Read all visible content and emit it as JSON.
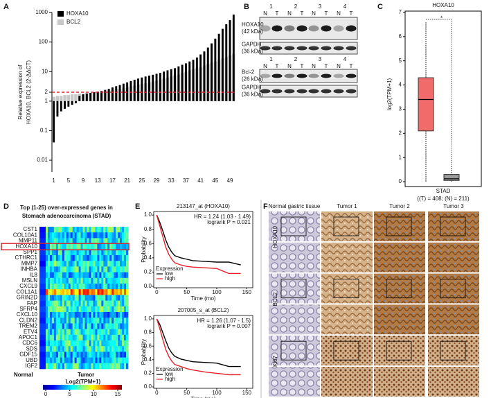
{
  "panels": [
    "A",
    "B",
    "C",
    "D",
    "E",
    "F"
  ],
  "chart_data": [
    {
      "type": "bar",
      "log_y": true,
      "ylabel_lines": [
        "Relative expression of",
        "HOXA10, BCL2 (2-ΔΔCT)"
      ],
      "categories": [
        1,
        null,
        null,
        null,
        5,
        null,
        null,
        null,
        9,
        null,
        null,
        null,
        13,
        null,
        null,
        null,
        17,
        null,
        null,
        null,
        21,
        null,
        null,
        null,
        25,
        null,
        null,
        null,
        29,
        null,
        null,
        null,
        33,
        null,
        null,
        null,
        37,
        null,
        null,
        null,
        41,
        null,
        null,
        null,
        45,
        null,
        null,
        null,
        49,
        null
      ],
      "series": [
        {
          "name": "HOXA10",
          "color": "#000000",
          "values": [
            0.04,
            0.3,
            0.45,
            0.55,
            0.65,
            0.75,
            0.85,
            1.5,
            1.7,
            1.8,
            1.9,
            2,
            2.1,
            2.2,
            2.4,
            2.6,
            2.9,
            3.2,
            3.5,
            3.9,
            4.3,
            4.8,
            5.3,
            5.8,
            6.3,
            6.8,
            7.3,
            7.8,
            8.4,
            9,
            10,
            11,
            12,
            13,
            15,
            17,
            19,
            22,
            25,
            30,
            38,
            48,
            65,
            90,
            130,
            190,
            280,
            400,
            550,
            850
          ]
        },
        {
          "name": "BCL2",
          "color": "#c8c8c8",
          "values": [
            1.4,
            1.5,
            1.5,
            1.6,
            1.6,
            1.7,
            1.7,
            1.8,
            1.8,
            1.9,
            1.9,
            2,
            2,
            2.1,
            2.2,
            2.3,
            2.4,
            2.5,
            2.6,
            2.8,
            3,
            3.2,
            3.4,
            3.6,
            3.8,
            4,
            4.3,
            4.6,
            5,
            5.4,
            5.8,
            6.2,
            6.8,
            7.4,
            8,
            9,
            10,
            11,
            12,
            13,
            14,
            16,
            18,
            20,
            22,
            25,
            28,
            31,
            35,
            40
          ]
        }
      ],
      "ylim": [
        0.004,
        1000
      ],
      "yticks": [
        1000,
        100,
        10,
        2,
        1,
        0.1,
        0.01
      ],
      "baseline": 1,
      "ref_line": {
        "value": 2,
        "color": "#e8202a"
      },
      "legend": "upper left"
    },
    {
      "type": "box",
      "title": "HOXA10",
      "ylabel": "log2(TPM+1)",
      "xlabel": "STAD",
      "note": "((T) = 408; (N) = 211)",
      "annotation": "*",
      "annotation_color": "#e8202a",
      "ylim": [
        -0.2,
        7.4
      ],
      "yticks": [
        0,
        1,
        2,
        3,
        4,
        5,
        6,
        7
      ],
      "boxes": [
        {
          "color": "#f26b6b",
          "whisker_low": 0,
          "q1": 2.1,
          "median": 3.4,
          "q3": 4.3,
          "whisker_high": 6.6
        },
        {
          "color": "#9a9a9a",
          "whisker_low": 0,
          "q1": 0.05,
          "median": 0.12,
          "q3": 0.3,
          "whisker_high": 0.7
        }
      ]
    },
    {
      "type": "line",
      "title": "213147_at (HOXA10)",
      "annotations": [
        "HR = 1.24 (1.03 - 1.49)",
        "logrank P = 0.021"
      ],
      "xlabel": "Time (mo)",
      "ylabel": "Probability",
      "legend_title": "Expression",
      "x": [
        0,
        5,
        10,
        15,
        20,
        25,
        30,
        40,
        50,
        60,
        80,
        100,
        120,
        140
      ],
      "series": [
        {
          "name": "low",
          "color": "#000000",
          "values": [
            1,
            0.9,
            0.78,
            0.65,
            0.55,
            0.48,
            0.43,
            0.4,
            0.38,
            0.36,
            0.35,
            0.34,
            0.34,
            0.3
          ]
        },
        {
          "name": "high",
          "color": "#e8202a",
          "values": [
            1,
            0.85,
            0.7,
            0.55,
            0.45,
            0.38,
            0.33,
            0.3,
            0.28,
            0.27,
            0.26,
            0.25,
            0.18,
            0.18
          ]
        }
      ],
      "xlim": [
        -5,
        160
      ],
      "xticks": [
        0,
        50,
        100,
        150
      ],
      "ylim": [
        -0.02,
        1.05
      ],
      "yticks": [
        {
          "value": 0,
          "label": "0.0"
        },
        0.2,
        0.4,
        0.6,
        0.8,
        {
          "value": 1,
          "label": "1.0"
        }
      ]
    },
    {
      "type": "line",
      "title": "207005_s_at (BCL2)",
      "annotations": [
        "HR = 1.26 (1.07 - 1.5)",
        "logrank P = 0.007"
      ],
      "xlabel": "Time (mo)",
      "ylabel": "Probability",
      "legend_title": "Expression",
      "x": [
        0,
        5,
        10,
        15,
        20,
        25,
        30,
        40,
        50,
        60,
        80,
        100,
        120,
        140
      ],
      "series": [
        {
          "name": "low",
          "color": "#000000",
          "values": [
            1,
            0.92,
            0.8,
            0.68,
            0.57,
            0.5,
            0.45,
            0.41,
            0.39,
            0.37,
            0.36,
            0.35,
            0.3,
            0.3
          ]
        },
        {
          "name": "high",
          "color": "#e8202a",
          "values": [
            1,
            0.86,
            0.7,
            0.55,
            0.45,
            0.38,
            0.33,
            0.3,
            0.27,
            0.25,
            0.22,
            0.2,
            0.18,
            0.18
          ]
        }
      ],
      "xlim": [
        -5,
        160
      ],
      "xticks": [
        0,
        50,
        100,
        150
      ],
      "ylim": [
        -0.02,
        1.05
      ],
      "yticks": [
        {
          "value": 0,
          "label": "0.0"
        },
        0.2,
        0.4,
        0.6,
        0.8,
        {
          "value": 1,
          "label": "1.0"
        }
      ]
    }
  ],
  "blots": [
    {
      "lanes": [
        "1",
        "2",
        "3",
        "4"
      ],
      "sublanes": [
        "N",
        "T",
        "N",
        "T",
        "N",
        "T",
        "N",
        "T"
      ],
      "rows": [
        {
          "lines": [
            "HOXA10",
            "(42 kDa)"
          ]
        },
        {
          "lines": [
            "GAPDH",
            "(36 kDa)"
          ]
        }
      ]
    },
    {
      "lanes": [
        "1",
        "2",
        "3",
        "4"
      ],
      "sublanes": [
        "N",
        "T",
        "N",
        "T",
        "N",
        "T",
        "N",
        "T"
      ],
      "rows": [
        {
          "lines": [
            "Bcl-2",
            "(26 kDa)"
          ]
        },
        {
          "lines": [
            "GAPDH",
            "(36 kDa)"
          ]
        }
      ]
    }
  ],
  "heatmap": {
    "title_lines": [
      "Top (1-25) over-expressed genes in",
      "Stomach adenocarcinoma (STAD)"
    ],
    "genes": [
      "CST1",
      "COL10A1",
      "MMP11",
      "HOXA10",
      "SPP1",
      "CTHRC1",
      "MMP7",
      "INHBA",
      "IL8",
      "MSLN",
      "CXCL9",
      "COL1A1",
      "GRIN2D",
      "FAP",
      "SFRP4",
      "CXCL10",
      "CLDN2",
      "TREM2",
      "ETV4",
      "APOC1",
      "CDC6",
      "SDS",
      "GDF15",
      "UBD",
      "IGF2"
    ],
    "highlight": "HOXA10",
    "groups": [
      "Normal",
      "Tumor"
    ],
    "group_color": "#8b1a1a",
    "colorbar_title": "Log2(TPM+1)",
    "colorbar_range": [
      0,
      15
    ],
    "colorbar_ticks": [
      0,
      5,
      10,
      15
    ]
  },
  "ihc": {
    "columns": [
      "Normal gastric tissue",
      "Tumor 1",
      "Tumor 2",
      "Tumor 3"
    ],
    "rows": [
      "HOXA10",
      "BCL2",
      "Ki67"
    ]
  }
}
